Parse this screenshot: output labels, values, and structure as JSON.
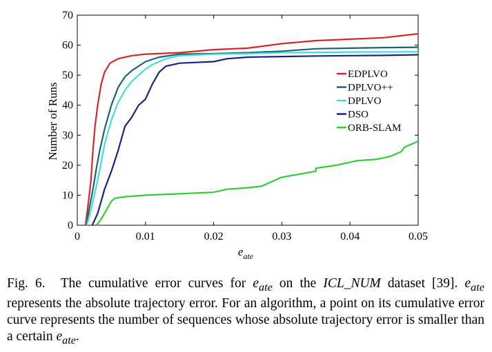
{
  "chart_data": {
    "type": "line",
    "title": "",
    "xlabel": "e_ate",
    "xlabel_main": "e",
    "xlabel_sub": "ate",
    "ylabel": "Number of Runs",
    "xlim": [
      0,
      0.05
    ],
    "ylim": [
      0,
      70
    ],
    "xticks": [
      0,
      0.01,
      0.02,
      0.03,
      0.04,
      0.05
    ],
    "xtick_labels": [
      "0",
      "0.01",
      "0.02",
      "0.03",
      "0.04",
      "0.05"
    ],
    "yticks": [
      0,
      10,
      20,
      30,
      40,
      50,
      60,
      70
    ],
    "ytick_labels": [
      "0",
      "10",
      "20",
      "30",
      "40",
      "50",
      "60",
      "70"
    ],
    "grid": false,
    "legend_position": "right",
    "series": [
      {
        "name": "EDPLVO",
        "color": "#d62728",
        "points": [
          [
            0.0012,
            0
          ],
          [
            0.0016,
            7
          ],
          [
            0.002,
            15
          ],
          [
            0.0023,
            25
          ],
          [
            0.0026,
            33
          ],
          [
            0.003,
            40
          ],
          [
            0.0035,
            47
          ],
          [
            0.004,
            51
          ],
          [
            0.0048,
            54
          ],
          [
            0.006,
            55.5
          ],
          [
            0.008,
            56.5
          ],
          [
            0.01,
            57
          ],
          [
            0.015,
            57.5
          ],
          [
            0.02,
            58.5
          ],
          [
            0.025,
            59
          ],
          [
            0.03,
            60.5
          ],
          [
            0.035,
            61.5
          ],
          [
            0.04,
            62
          ],
          [
            0.045,
            62.5
          ],
          [
            0.05,
            63.8
          ]
        ]
      },
      {
        "name": "DPLVO++",
        "color": "#1f5f7a",
        "points": [
          [
            0.0013,
            0
          ],
          [
            0.0018,
            6
          ],
          [
            0.0023,
            12
          ],
          [
            0.0028,
            19
          ],
          [
            0.0033,
            25
          ],
          [
            0.004,
            32
          ],
          [
            0.005,
            40
          ],
          [
            0.006,
            46
          ],
          [
            0.007,
            49.5
          ],
          [
            0.008,
            51.5
          ],
          [
            0.009,
            53
          ],
          [
            0.01,
            54.5
          ],
          [
            0.012,
            56
          ],
          [
            0.015,
            57
          ],
          [
            0.02,
            57.2
          ],
          [
            0.025,
            57.5
          ],
          [
            0.03,
            58
          ],
          [
            0.035,
            58.8
          ],
          [
            0.04,
            59
          ],
          [
            0.045,
            59.2
          ],
          [
            0.05,
            59.3
          ]
        ]
      },
      {
        "name": "DPLVO",
        "color": "#40e0d0",
        "points": [
          [
            0.0014,
            0
          ],
          [
            0.002,
            5
          ],
          [
            0.0025,
            10
          ],
          [
            0.003,
            15
          ],
          [
            0.0035,
            21
          ],
          [
            0.004,
            27
          ],
          [
            0.005,
            35
          ],
          [
            0.006,
            41
          ],
          [
            0.007,
            45
          ],
          [
            0.008,
            48
          ],
          [
            0.009,
            50
          ],
          [
            0.01,
            52
          ],
          [
            0.011,
            53.5
          ],
          [
            0.012,
            54.5
          ],
          [
            0.013,
            55.5
          ],
          [
            0.015,
            56.5
          ],
          [
            0.02,
            57
          ],
          [
            0.025,
            57.2
          ],
          [
            0.03,
            57.5
          ],
          [
            0.04,
            57.7
          ],
          [
            0.05,
            57.8
          ]
        ]
      },
      {
        "name": "DSO",
        "color": "#1a237e",
        "points": [
          [
            0.0022,
            0
          ],
          [
            0.003,
            4
          ],
          [
            0.0035,
            8
          ],
          [
            0.004,
            12
          ],
          [
            0.005,
            18
          ],
          [
            0.006,
            25
          ],
          [
            0.007,
            33
          ],
          [
            0.008,
            36
          ],
          [
            0.009,
            40
          ],
          [
            0.01,
            42
          ],
          [
            0.011,
            47
          ],
          [
            0.012,
            51
          ],
          [
            0.013,
            53
          ],
          [
            0.015,
            54
          ],
          [
            0.02,
            54.5
          ],
          [
            0.022,
            55.5
          ],
          [
            0.025,
            56
          ],
          [
            0.03,
            56.2
          ],
          [
            0.035,
            56.4
          ],
          [
            0.04,
            56.5
          ],
          [
            0.045,
            56.6
          ],
          [
            0.05,
            56.8
          ]
        ]
      },
      {
        "name": "ORB-SLAM",
        "color": "#33cc33",
        "points": [
          [
            0.0028,
            0
          ],
          [
            0.0035,
            2
          ],
          [
            0.004,
            4
          ],
          [
            0.0045,
            6
          ],
          [
            0.005,
            8
          ],
          [
            0.0055,
            9
          ],
          [
            0.007,
            9.5
          ],
          [
            0.01,
            10
          ],
          [
            0.015,
            10.5
          ],
          [
            0.02,
            11
          ],
          [
            0.022,
            12
          ],
          [
            0.025,
            12.5
          ],
          [
            0.027,
            13
          ],
          [
            0.028,
            14
          ],
          [
            0.029,
            15
          ],
          [
            0.03,
            16
          ],
          [
            0.035,
            18
          ],
          [
            0.035,
            19
          ],
          [
            0.038,
            20
          ],
          [
            0.041,
            21.5
          ],
          [
            0.044,
            22
          ],
          [
            0.046,
            23
          ],
          [
            0.0475,
            24.5
          ],
          [
            0.048,
            26
          ],
          [
            0.049,
            27
          ],
          [
            0.05,
            28
          ]
        ]
      }
    ]
  },
  "caption": {
    "label": "Fig. 6.",
    "text_1": "The cumulative error curves for ",
    "math_1": "e",
    "math_1_sub": "ate",
    "text_2": " on the ",
    "dataset": "ICL_NUM",
    "text_3": " dataset [39]. ",
    "math_2": "e",
    "math_2_sub": "ate",
    "text_4": " represents the absolute trajectory error. For an algorithm, a point on its cumulative error curve represents the number of sequences whose absolute trajectory error is smaller than a certain ",
    "math_3": "e",
    "math_3_sub": "ate",
    "text_5": "."
  }
}
